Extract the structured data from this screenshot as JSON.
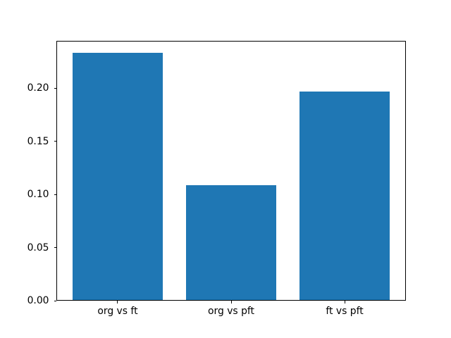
{
  "chart_data": {
    "type": "bar",
    "title": "",
    "xlabel": "",
    "ylabel": "",
    "categories": [
      "org vs ft",
      "org vs pft",
      "ft vs pft"
    ],
    "values": [
      0.233,
      0.109,
      0.197
    ],
    "bar_color": "#1f77b4",
    "bar_width": 0.8,
    "xlim": [
      -0.54,
      2.54
    ],
    "ylim": [
      0,
      0.2447
    ],
    "y_ticks": [
      0.0,
      0.05,
      0.1,
      0.15,
      0.2
    ],
    "y_tick_labels": [
      "0.00",
      "0.05",
      "0.10",
      "0.15",
      "0.20"
    ],
    "grid": false,
    "legend": null,
    "spine_color": "#000000",
    "tick_label_color": "#000000",
    "background_color": "#ffffff"
  }
}
